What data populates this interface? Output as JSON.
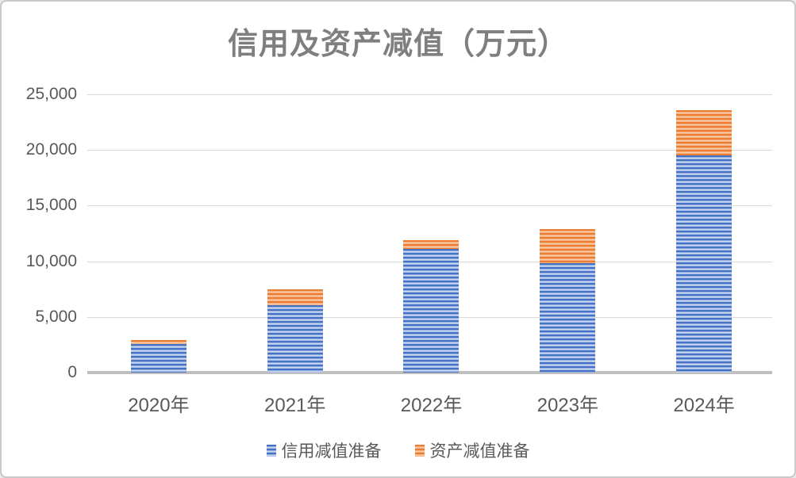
{
  "chart_data": {
    "type": "bar",
    "stacked": true,
    "title": "信用及资产减值（万元）",
    "categories": [
      "2020年",
      "2021年",
      "2022年",
      "2023年",
      "2024年"
    ],
    "series": [
      {
        "name": "信用减值准备",
        "color": "#4472C4",
        "values": [
          2550,
          6050,
          11100,
          9800,
          19500
        ]
      },
      {
        "name": "资产减值准备",
        "color": "#ED7D31",
        "values": [
          350,
          1400,
          800,
          3100,
          4100
        ]
      }
    ],
    "stack_totals": [
      2900,
      7450,
      11900,
      12900,
      23600
    ],
    "xlabel": "",
    "ylabel": "",
    "ylim": [
      0,
      25000
    ],
    "ytick_interval": 5000,
    "ytick_labels": [
      "0",
      "5,000",
      "10,000",
      "15,000",
      "20,000",
      "25,000"
    ],
    "grid": "horizontal",
    "legend_position": "bottom",
    "colors": {
      "title_text": "#7f7f7f",
      "axis_text": "#595959",
      "gridline": "#d9d9d9",
      "axis_line": "#bfbfbf"
    }
  }
}
